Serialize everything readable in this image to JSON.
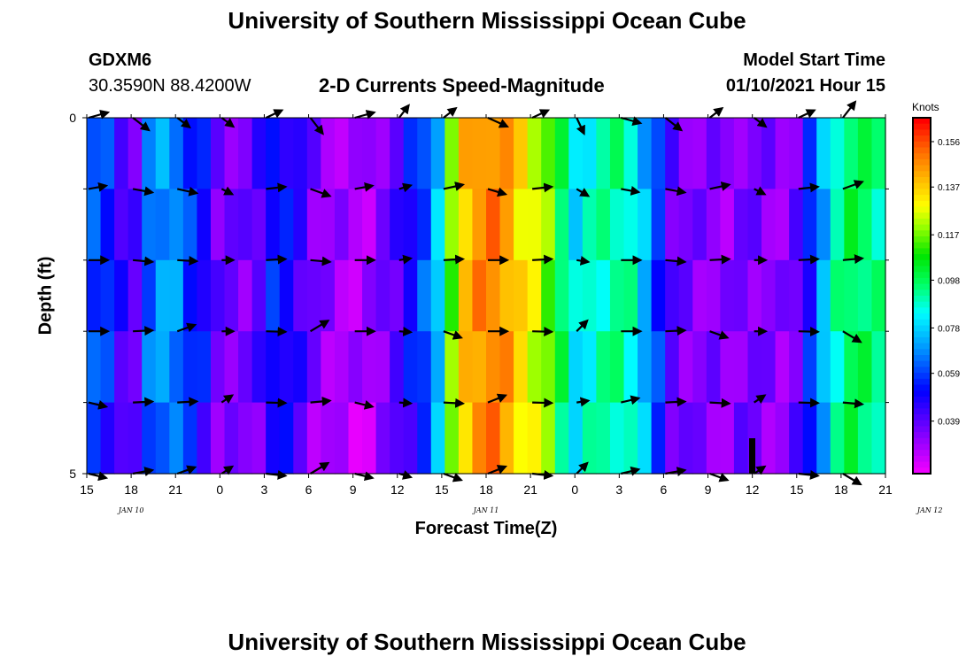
{
  "header": {
    "title": "University of Southern Mississippi Ocean Cube",
    "station_id": "GDXM6",
    "station_coords": "30.3590N 88.4200W",
    "plot_title": "2-D Currents Speed-Magnitude",
    "start_label": "Model Start Time",
    "start_value": "01/10/2021 Hour 15"
  },
  "footer": {
    "title": "University of Southern Mississippi Ocean Cube"
  },
  "chart_data": {
    "type": "heatmap",
    "title": "2-D Currents Speed-Magnitude",
    "xlabel": "Forecast Time(Z)",
    "ylabel": "Depth (ft)",
    "y_ticks": [
      "0",
      "5"
    ],
    "ylim": [
      5,
      0
    ],
    "x_tick_labels": [
      "15",
      "18",
      "21",
      "0",
      "3",
      "6",
      "9",
      "12",
      "15",
      "18",
      "21",
      "0",
      "3",
      "6",
      "9",
      "12",
      "15",
      "18",
      "21"
    ],
    "x_day_labels": [
      "JAN 10",
      "JAN 11",
      "JAN 12"
    ],
    "x_day_label_hours": [
      3,
      27,
      57
    ],
    "x_range_hours": [
      0,
      54
    ],
    "colorbar": {
      "unit": "Knots",
      "tick_labels": [
        "0.156",
        "0.137",
        "0.117",
        "0.098",
        "0.078",
        "0.059",
        "0.039"
      ],
      "range": [
        0.017,
        0.166
      ]
    },
    "speed_columns_knots": [
      0.062,
      0.058,
      0.045,
      0.04,
      0.065,
      0.072,
      0.07,
      0.058,
      0.052,
      0.038,
      0.037,
      0.036,
      0.042,
      0.055,
      0.052,
      0.045,
      0.036,
      0.032,
      0.03,
      0.028,
      0.03,
      0.036,
      0.042,
      0.052,
      0.062,
      0.078,
      0.118,
      0.14,
      0.148,
      0.15,
      0.145,
      0.135,
      0.128,
      0.118,
      0.098,
      0.082,
      0.088,
      0.092,
      0.094,
      0.09,
      0.075,
      0.058,
      0.04,
      0.036,
      0.034,
      0.034,
      0.032,
      0.036,
      0.036,
      0.034,
      0.032,
      0.038,
      0.055,
      0.075,
      0.092,
      0.1,
      0.098,
      0.094
    ],
    "vectors": [
      {
        "hour": 0,
        "rows": [
          [
            22,
            7,
            16,
            -310
          ],
          [
            22,
            5,
            16,
            -310
          ],
          [
            22,
            1,
            6,
            -310
          ],
          [
            22,
            0,
            8,
            -310
          ],
          [
            22,
            0,
            -8,
            -310
          ],
          [
            22,
            -4,
            -9,
            -310
          ]
        ]
      },
      {
        "hour": 3,
        "rows": [
          [
            25,
            10,
            18,
            -310
          ],
          [
            24,
            -2,
            18,
            -310
          ],
          [
            22,
            0,
            3,
            -310
          ],
          [
            22,
            2,
            -2,
            -310
          ],
          [
            22,
            -1,
            -1,
            -310
          ],
          [
            22,
            -4,
            -5,
            -310
          ]
        ]
      },
      {
        "hour": 6,
        "rows": [
          [
            0,
            0,
            0,
            -310
          ],
          [
            22,
            -2,
            15,
            -310
          ],
          [
            22,
            -1,
            8,
            -310
          ],
          [
            22,
            -1,
            -4,
            -310
          ],
          [
            22,
            0,
            -3,
            -310
          ],
          [
            22,
            -2,
            -3,
            -310
          ]
        ]
      },
      {
        "hour": 9,
        "rows": [
          [
            13,
            -18,
            15,
            -310
          ],
          [
            14,
            -18,
            13,
            -310
          ],
          [
            14,
            7,
            11,
            -310
          ],
          [
            22,
            4,
            14,
            -310
          ],
          [
            22,
            0,
            3,
            -310
          ],
          [
            22,
            1,
            -5,
            -310
          ]
        ]
      },
      {
        "hour": 12,
        "rows": [
          [
            13,
            -18,
            15,
            -310
          ],
          [
            12,
            -18,
            13,
            -310
          ],
          [
            12,
            -18,
            13,
            -310
          ],
          [
            12,
            -18,
            14,
            -310
          ],
          [
            20,
            5,
            0,
            -310
          ],
          [
            20,
            -6,
            7,
            -310
          ]
        ]
      },
      {
        "hour": 15,
        "rows": [
          [
            20,
            -15,
            -11,
            -310
          ],
          [
            20,
            -15,
            -10,
            -310
          ],
          [
            20,
            -12,
            -13,
            -310
          ],
          [
            20,
            -15,
            -10,
            -310
          ],
          [
            20,
            -4,
            -14,
            -310
          ],
          [
            20,
            -4,
            -12,
            -310
          ]
        ]
      },
      {
        "hour": 18,
        "rows": [
          [
            22,
            -18,
            -10,
            -310
          ],
          [
            20,
            -14,
            12,
            -310
          ],
          [
            20,
            -14,
            12,
            -310
          ],
          [
            20,
            -12,
            15,
            -310
          ],
          [
            14,
            3,
            18,
            -310
          ],
          [
            12,
            8,
            18,
            -310
          ]
        ]
      },
      {
        "hour": 21,
        "rows": [
          [
            0,
            0,
            0,
            -310
          ],
          [
            20,
            -15,
            12,
            -310
          ],
          [
            20,
            -12,
            19,
            -310
          ],
          [
            20,
            -14,
            12,
            -310
          ],
          [
            14,
            -12,
            -15,
            -310
          ],
          [
            0,
            0,
            0,
            -310
          ]
        ]
      }
    ]
  }
}
